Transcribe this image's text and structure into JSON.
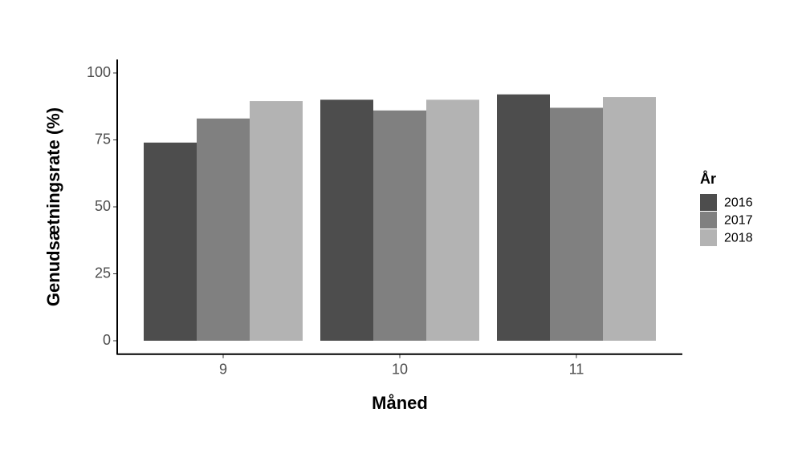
{
  "chart_data": {
    "type": "bar",
    "x_label": "Måned",
    "y_label": "Genudsætningsrate (%)",
    "legend_title": "År",
    "legend_position": "right",
    "categories": [
      "9",
      "10",
      "11"
    ],
    "series": [
      {
        "name": "2016",
        "color": "#4d4d4d",
        "values": [
          74,
          90,
          92
        ]
      },
      {
        "name": "2017",
        "color": "#808080",
        "values": [
          83,
          86,
          87
        ]
      },
      {
        "name": "2018",
        "color": "#b3b3b3",
        "values": [
          89.5,
          90,
          91
        ]
      }
    ],
    "ylim": [
      -5,
      105
    ],
    "yticks": [
      0,
      25,
      50,
      75,
      100
    ],
    "grid": false
  }
}
